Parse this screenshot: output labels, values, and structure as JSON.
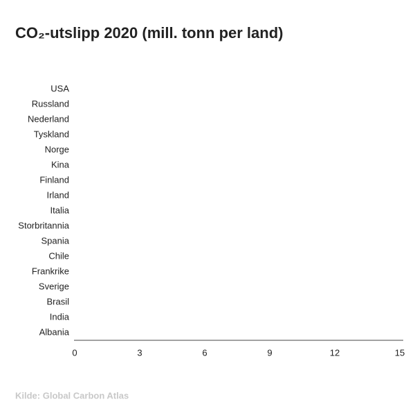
{
  "chart_data": {
    "type": "bar",
    "orientation": "horizontal",
    "title": "CO₂-utslipp 2020 (mill. tonn per land)",
    "source": "Kilde: Global Carbon Atlas",
    "categories": [
      "USA",
      "Russland",
      "Nederland",
      "Tyskland",
      "Norge",
      "Kina",
      "Finland",
      "Irland",
      "Italia",
      "Storbritannia",
      "Spania",
      "Chile",
      "Frankrike",
      "Sverige",
      "Brasil",
      "India",
      "Albania"
    ],
    "xlim": [
      0,
      15
    ],
    "xticks": [
      0,
      3,
      6,
      9,
      12,
      15
    ]
  }
}
